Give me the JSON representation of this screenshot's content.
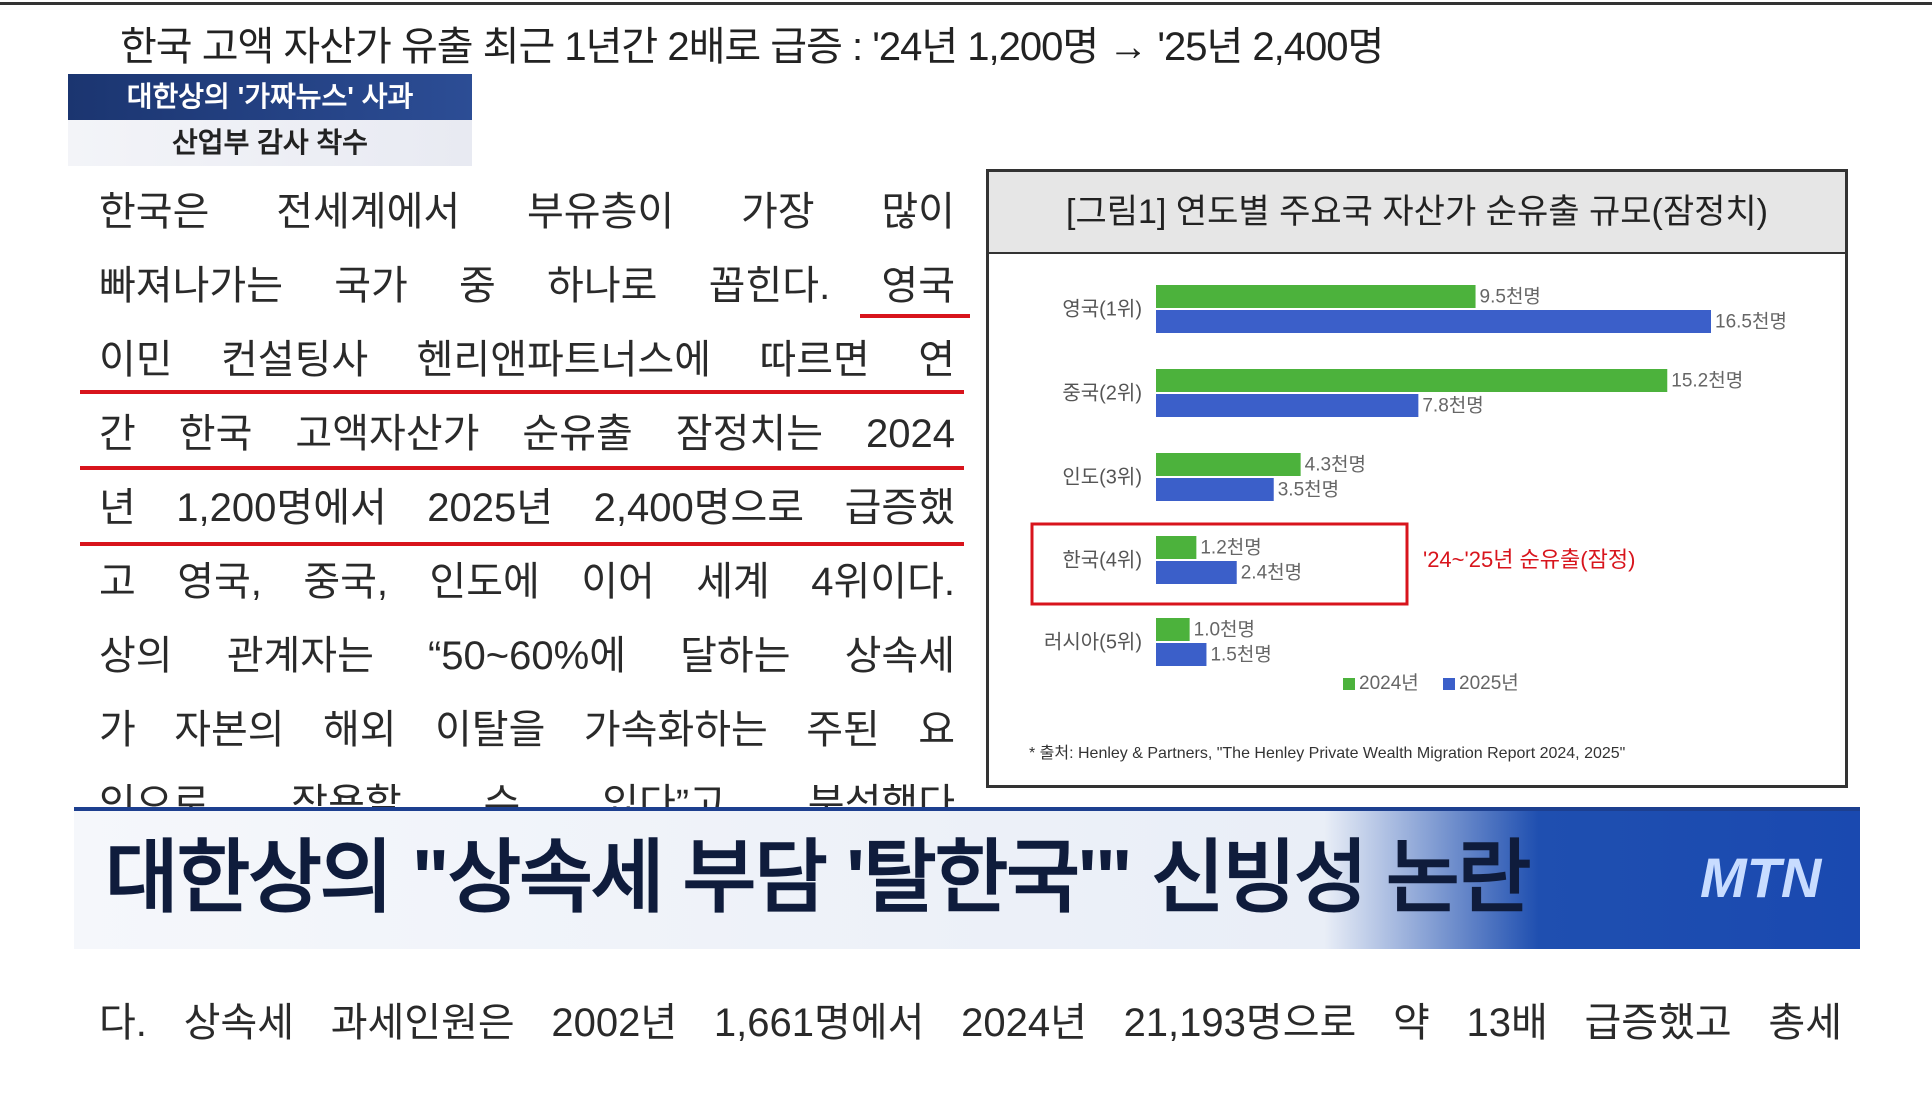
{
  "document": {
    "heading": "한국 고액 자산가 유출 최근 1년간 2배로 급증 : '24년 1,200명 → '25년 2,400명",
    "paragraph_lines": [
      "한국은 전세계에서 부유층이 가장 많이",
      "빠져나가는 국가 중 하나로 꼽힌다. 영국",
      "이민 컨설팅사 헨리앤파트너스에 따르면 연",
      "간 한국 고액자산가 순유출 잠정치는 2024",
      "년 1,200명에서 2025년 2,400명으로 급증했",
      "고 영국, 중국, 인도에 이어 세계 4위이다.",
      "상의 관계자는 “50~60%에 달하는 상속세",
      "가 자본의 해외 이탈을 가속화하는 주된 요",
      "인으로 작용할 수 있다”고 분석했다"
    ],
    "bottom_line": "다. 상속세 과세인원은 2002년 1,661명에서 2024년 21,193명으로 약 13배 급증했고 총세"
  },
  "news": {
    "tag_primary": "대한상의 '가짜뉴스' 사과",
    "tag_secondary": "산업부 감사 착수",
    "headline": "대한상의 \"상속세 부담 '탈한국'\" 신빙성 논란",
    "logo": "MTN"
  },
  "chart_data": {
    "type": "bar",
    "orientation": "horizontal",
    "title": "[그림1] 연도별 주요국 자산가 순유출 규모(잠정치)",
    "categories": [
      "영국(1위)",
      "중국(2위)",
      "인도(3위)",
      "한국(4위)",
      "러시아(5위)"
    ],
    "series": [
      {
        "name": "2024년",
        "color": "#4cb23c",
        "values": [
          9.5,
          15.2,
          4.3,
          1.2,
          1.0
        ],
        "value_labels": [
          "9.5천명",
          "15.2천명",
          "4.3천명",
          "1.2천명",
          "1.0천명"
        ]
      },
      {
        "name": "2025년",
        "color": "#3b5fc9",
        "values": [
          16.5,
          7.8,
          3.5,
          2.4,
          1.5
        ],
        "value_labels": [
          "16.5천명",
          "7.8천명",
          "3.5천명",
          "2.4천명",
          "1.5천명"
        ]
      }
    ],
    "annotation": "'24~'25년 순유출(잠정)",
    "source": "* 출처: Henley & Partners, \"The Henley Private Wealth Migration Report 2024, 2025\""
  }
}
